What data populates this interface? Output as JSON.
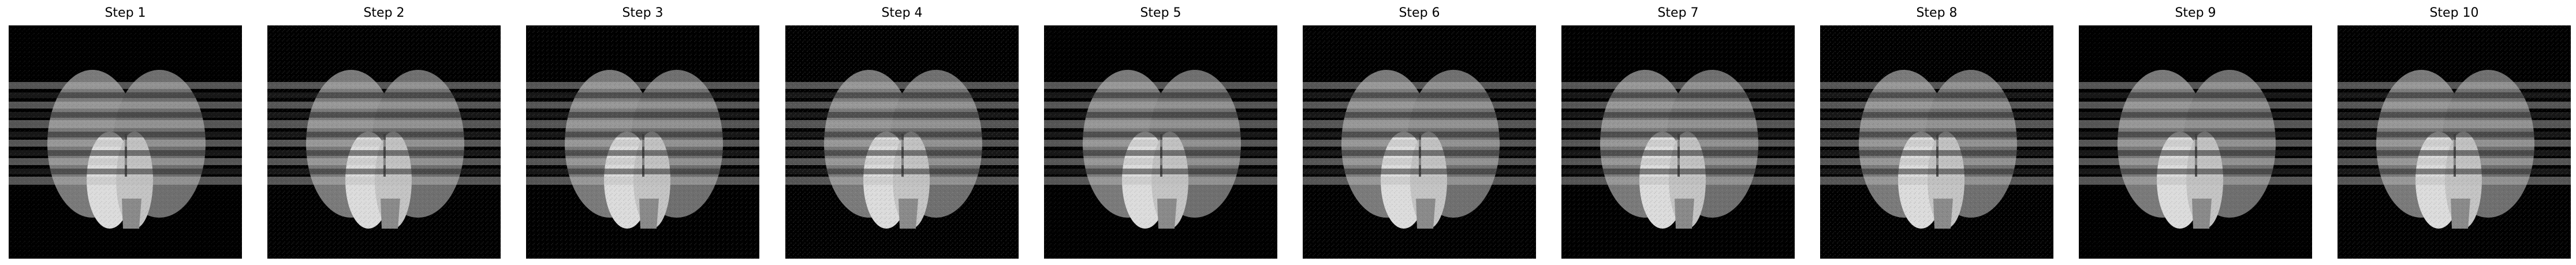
{
  "figure": {
    "panels": [
      {
        "title": "Step 1"
      },
      {
        "title": "Step 2"
      },
      {
        "title": "Step 3"
      },
      {
        "title": "Step 4"
      },
      {
        "title": "Step 5"
      },
      {
        "title": "Step 6"
      },
      {
        "title": "Step 7"
      },
      {
        "title": "Step 8"
      },
      {
        "title": "Step 9"
      },
      {
        "title": "Step 10"
      }
    ],
    "colors": {
      "background": "#000000",
      "ellipse_gray": "#7a7a7a",
      "ellipse_bright": "#dcdcdc",
      "stripe_light": "#bdbdbd",
      "stripe_dark": "#2a2a2a"
    }
  }
}
